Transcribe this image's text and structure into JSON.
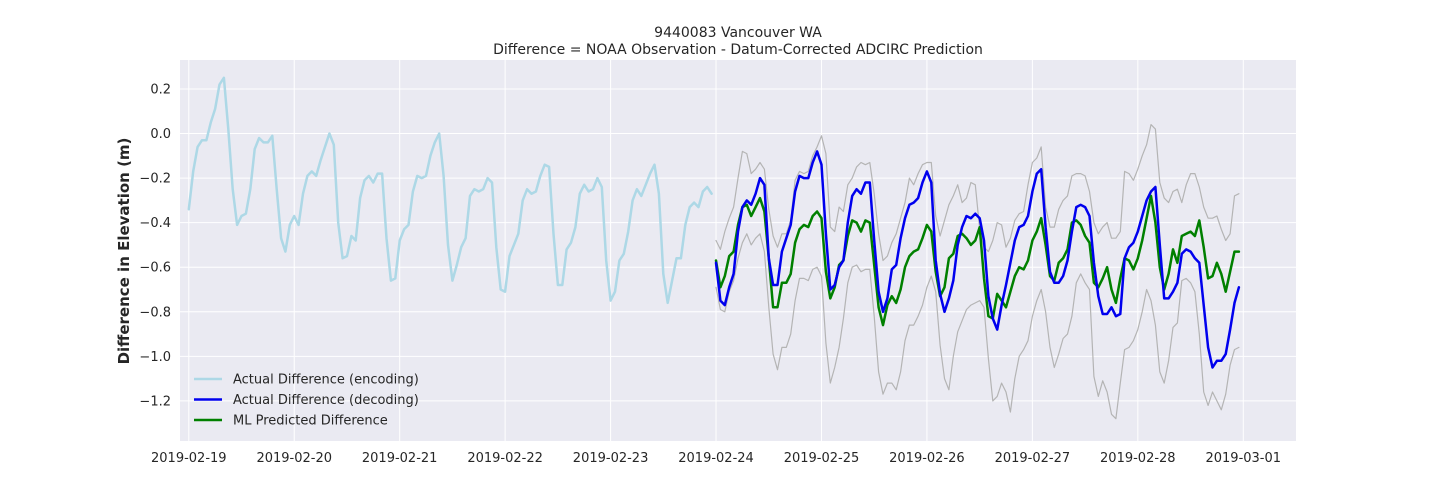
{
  "chart_data": {
    "type": "line",
    "title": "9440083 Vancouver WA",
    "subtitle": "Difference = NOAA Observation - Datum-Corrected ADCIRC Prediction",
    "xlabel": "",
    "ylabel": "Difference in Elevation (m)",
    "x_axis": "date",
    "xlim": [
      "2019-02-18T22:00",
      "2019-03-01T12:00"
    ],
    "ylim": [
      -1.38,
      0.33
    ],
    "xticks": [
      "2019-02-19",
      "2019-02-20",
      "2019-02-21",
      "2019-02-22",
      "2019-02-23",
      "2019-02-24",
      "2019-02-25",
      "2019-02-26",
      "2019-02-27",
      "2019-02-28",
      "2019-03-01"
    ],
    "yticks": [
      0.2,
      0.0,
      -0.2,
      -0.4,
      -0.6,
      -0.8,
      -1.0,
      -1.2
    ],
    "ytick_labels": [
      "0.2",
      "0.0",
      "−0.2",
      "−0.4",
      "−0.6",
      "−0.8",
      "−1.0",
      "−1.2"
    ],
    "grid": true,
    "legend_position": "lower-left",
    "background": "#eaeaf2",
    "series": [
      {
        "name": "Actual Difference (encoding)",
        "color": "#add8e6",
        "width": 2.5,
        "start": "2019-02-19T00:00",
        "step_hours": 1,
        "values": [
          -0.34,
          -0.17,
          -0.06,
          -0.03,
          -0.03,
          0.05,
          0.11,
          0.22,
          0.25,
          0.02,
          -0.25,
          -0.41,
          -0.37,
          -0.36,
          -0.25,
          -0.07,
          -0.02,
          -0.04,
          -0.04,
          -0.01,
          -0.25,
          -0.47,
          -0.53,
          -0.41,
          -0.37,
          -0.41,
          -0.27,
          -0.19,
          -0.17,
          -0.19,
          -0.12,
          -0.06,
          0.0,
          -0.05,
          -0.4,
          -0.56,
          -0.55,
          -0.46,
          -0.48,
          -0.29,
          -0.21,
          -0.19,
          -0.22,
          -0.18,
          -0.18,
          -0.47,
          -0.66,
          -0.65,
          -0.48,
          -0.43,
          -0.41,
          -0.26,
          -0.19,
          -0.2,
          -0.19,
          -0.1,
          -0.04,
          0.0,
          -0.19,
          -0.5,
          -0.66,
          -0.59,
          -0.51,
          -0.47,
          -0.28,
          -0.25,
          -0.26,
          -0.25,
          -0.2,
          -0.22,
          -0.51,
          -0.7,
          -0.71,
          -0.55,
          -0.5,
          -0.45,
          -0.3,
          -0.25,
          -0.27,
          -0.26,
          -0.19,
          -0.14,
          -0.15,
          -0.45,
          -0.68,
          -0.68,
          -0.52,
          -0.49,
          -0.42,
          -0.27,
          -0.23,
          -0.26,
          -0.25,
          -0.2,
          -0.24,
          -0.57,
          -0.75,
          -0.71,
          -0.57,
          -0.54,
          -0.44,
          -0.3,
          -0.25,
          -0.28,
          -0.23,
          -0.18,
          -0.14,
          -0.27,
          -0.63,
          -0.76,
          -0.66,
          -0.56,
          -0.56,
          -0.41,
          -0.33,
          -0.31,
          -0.33,
          -0.26,
          -0.24,
          -0.27
        ]
      },
      {
        "name": "Actual Difference (decoding)",
        "color": "#0000ee",
        "width": 2.5,
        "start": "2019-02-24T00:00",
        "step_hours": 1,
        "values": [
          -0.58,
          -0.75,
          -0.77,
          -0.69,
          -0.63,
          -0.44,
          -0.33,
          -0.3,
          -0.32,
          -0.27,
          -0.2,
          -0.23,
          -0.56,
          -0.68,
          -0.68,
          -0.53,
          -0.47,
          -0.41,
          -0.26,
          -0.19,
          -0.2,
          -0.2,
          -0.13,
          -0.08,
          -0.14,
          -0.45,
          -0.7,
          -0.68,
          -0.6,
          -0.57,
          -0.4,
          -0.28,
          -0.25,
          -0.27,
          -0.22,
          -0.22,
          -0.48,
          -0.71,
          -0.8,
          -0.74,
          -0.61,
          -0.59,
          -0.47,
          -0.38,
          -0.32,
          -0.31,
          -0.29,
          -0.22,
          -0.17,
          -0.22,
          -0.57,
          -0.72,
          -0.8,
          -0.74,
          -0.66,
          -0.5,
          -0.42,
          -0.37,
          -0.38,
          -0.36,
          -0.38,
          -0.48,
          -0.73,
          -0.83,
          -0.88,
          -0.77,
          -0.68,
          -0.58,
          -0.48,
          -0.42,
          -0.41,
          -0.37,
          -0.26,
          -0.18,
          -0.16,
          -0.42,
          -0.62,
          -0.67,
          -0.67,
          -0.64,
          -0.57,
          -0.44,
          -0.33,
          -0.32,
          -0.33,
          -0.37,
          -0.58,
          -0.73,
          -0.81,
          -0.81,
          -0.78,
          -0.82,
          -0.81,
          -0.56,
          -0.51,
          -0.49,
          -0.44,
          -0.37,
          -0.3,
          -0.26,
          -0.24,
          -0.5,
          -0.74,
          -0.74,
          -0.71,
          -0.67,
          -0.54,
          -0.52,
          -0.53,
          -0.56,
          -0.58,
          -0.77,
          -0.96,
          -1.05,
          -1.02,
          -1.02,
          -0.99,
          -0.88,
          -0.76,
          -0.69
        ]
      },
      {
        "name": "ML Predicted Difference",
        "color": "#008000",
        "width": 2.5,
        "start": "2019-02-24T00:00",
        "step_hours": 1,
        "values": [
          -0.57,
          -0.69,
          -0.64,
          -0.55,
          -0.53,
          -0.41,
          -0.33,
          -0.32,
          -0.37,
          -0.33,
          -0.29,
          -0.35,
          -0.56,
          -0.78,
          -0.78,
          -0.67,
          -0.67,
          -0.63,
          -0.49,
          -0.43,
          -0.41,
          -0.42,
          -0.37,
          -0.35,
          -0.38,
          -0.62,
          -0.74,
          -0.69,
          -0.59,
          -0.57,
          -0.46,
          -0.39,
          -0.4,
          -0.44,
          -0.39,
          -0.4,
          -0.59,
          -0.78,
          -0.86,
          -0.77,
          -0.73,
          -0.76,
          -0.7,
          -0.6,
          -0.55,
          -0.53,
          -0.52,
          -0.47,
          -0.41,
          -0.44,
          -0.62,
          -0.73,
          -0.69,
          -0.56,
          -0.54,
          -0.46,
          -0.45,
          -0.47,
          -0.5,
          -0.48,
          -0.42,
          -0.65,
          -0.82,
          -0.83,
          -0.72,
          -0.75,
          -0.78,
          -0.71,
          -0.64,
          -0.6,
          -0.61,
          -0.57,
          -0.48,
          -0.44,
          -0.38,
          -0.5,
          -0.64,
          -0.66,
          -0.58,
          -0.56,
          -0.52,
          -0.4,
          -0.39,
          -0.41,
          -0.46,
          -0.49,
          -0.67,
          -0.69,
          -0.65,
          -0.6,
          -0.7,
          -0.76,
          -0.65,
          -0.56,
          -0.57,
          -0.61,
          -0.56,
          -0.48,
          -0.38,
          -0.28,
          -0.4,
          -0.6,
          -0.7,
          -0.63,
          -0.52,
          -0.58,
          -0.46,
          -0.45,
          -0.44,
          -0.46,
          -0.39,
          -0.51,
          -0.65,
          -0.64,
          -0.58,
          -0.63,
          -0.71,
          -0.62,
          -0.53,
          -0.53
        ]
      },
      {
        "name": "",
        "color": "#b4b4b4",
        "width": 1.2,
        "start": "2019-02-24T00:00",
        "step_hours": 1,
        "values": [
          -0.48,
          -0.52,
          -0.44,
          -0.38,
          -0.33,
          -0.2,
          -0.08,
          -0.09,
          -0.18,
          -0.16,
          -0.13,
          -0.16,
          -0.34,
          -0.46,
          -0.51,
          -0.45,
          -0.45,
          -0.39,
          -0.21,
          -0.17,
          -0.18,
          -0.17,
          -0.1,
          -0.06,
          -0.01,
          -0.09,
          -0.42,
          -0.44,
          -0.33,
          -0.35,
          -0.23,
          -0.2,
          -0.15,
          -0.13,
          -0.14,
          -0.13,
          -0.27,
          -0.45,
          -0.57,
          -0.55,
          -0.49,
          -0.45,
          -0.38,
          -0.31,
          -0.2,
          -0.23,
          -0.18,
          -0.14,
          -0.13,
          -0.13,
          -0.37,
          -0.46,
          -0.39,
          -0.32,
          -0.28,
          -0.23,
          -0.31,
          -0.29,
          -0.22,
          -0.23,
          -0.43,
          -0.51,
          -0.53,
          -0.48,
          -0.4,
          -0.41,
          -0.51,
          -0.47,
          -0.39,
          -0.36,
          -0.35,
          -0.23,
          -0.13,
          -0.11,
          -0.06,
          -0.33,
          -0.42,
          -0.42,
          -0.34,
          -0.3,
          -0.28,
          -0.19,
          -0.18,
          -0.18,
          -0.19,
          -0.26,
          -0.4,
          -0.45,
          -0.42,
          -0.4,
          -0.47,
          -0.47,
          -0.44,
          -0.17,
          -0.18,
          -0.21,
          -0.16,
          -0.1,
          -0.05,
          0.04,
          0.02,
          -0.22,
          -0.29,
          -0.31,
          -0.26,
          -0.25,
          -0.31,
          -0.23,
          -0.18,
          -0.18,
          -0.24,
          -0.33,
          -0.38,
          -0.38,
          -0.37,
          -0.43,
          -0.48,
          -0.45,
          -0.28,
          -0.27
        ]
      },
      {
        "name": "",
        "color": "#b4b4b4",
        "width": 1.2,
        "start": "2019-02-24T00:00",
        "step_hours": 1,
        "values": [
          -0.69,
          -0.79,
          -0.8,
          -0.71,
          -0.66,
          -0.56,
          -0.49,
          -0.45,
          -0.5,
          -0.47,
          -0.45,
          -0.53,
          -0.78,
          -0.99,
          -1.06,
          -0.96,
          -0.96,
          -0.9,
          -0.75,
          -0.65,
          -0.65,
          -0.66,
          -0.61,
          -0.6,
          -0.64,
          -0.94,
          -1.12,
          -1.05,
          -0.96,
          -0.83,
          -0.67,
          -0.6,
          -0.59,
          -0.62,
          -0.61,
          -0.61,
          -0.82,
          -1.07,
          -1.17,
          -1.12,
          -1.12,
          -1.15,
          -1.07,
          -0.93,
          -0.86,
          -0.86,
          -0.82,
          -0.77,
          -0.69,
          -0.64,
          -0.71,
          -0.95,
          -1.1,
          -1.15,
          -1.0,
          -0.89,
          -0.84,
          -0.79,
          -0.77,
          -0.76,
          -0.75,
          -0.78,
          -1.01,
          -1.2,
          -1.18,
          -1.12,
          -1.16,
          -1.25,
          -1.1,
          -1.0,
          -0.97,
          -0.93,
          -0.82,
          -0.75,
          -0.7,
          -0.8,
          -0.96,
          -1.05,
          -0.99,
          -0.92,
          -0.9,
          -0.82,
          -0.67,
          -0.63,
          -0.67,
          -0.7,
          -1.09,
          -1.18,
          -1.11,
          -1.16,
          -1.26,
          -1.28,
          -1.12,
          -0.97,
          -0.96,
          -0.93,
          -0.88,
          -0.8,
          -0.7,
          -0.75,
          -0.86,
          -1.07,
          -1.12,
          -1.02,
          -0.87,
          -0.85,
          -0.66,
          -0.65,
          -0.67,
          -0.71,
          -0.9,
          -1.16,
          -1.22,
          -1.16,
          -1.2,
          -1.24,
          -1.17,
          -1.04,
          -0.97,
          -0.96
        ]
      }
    ]
  }
}
